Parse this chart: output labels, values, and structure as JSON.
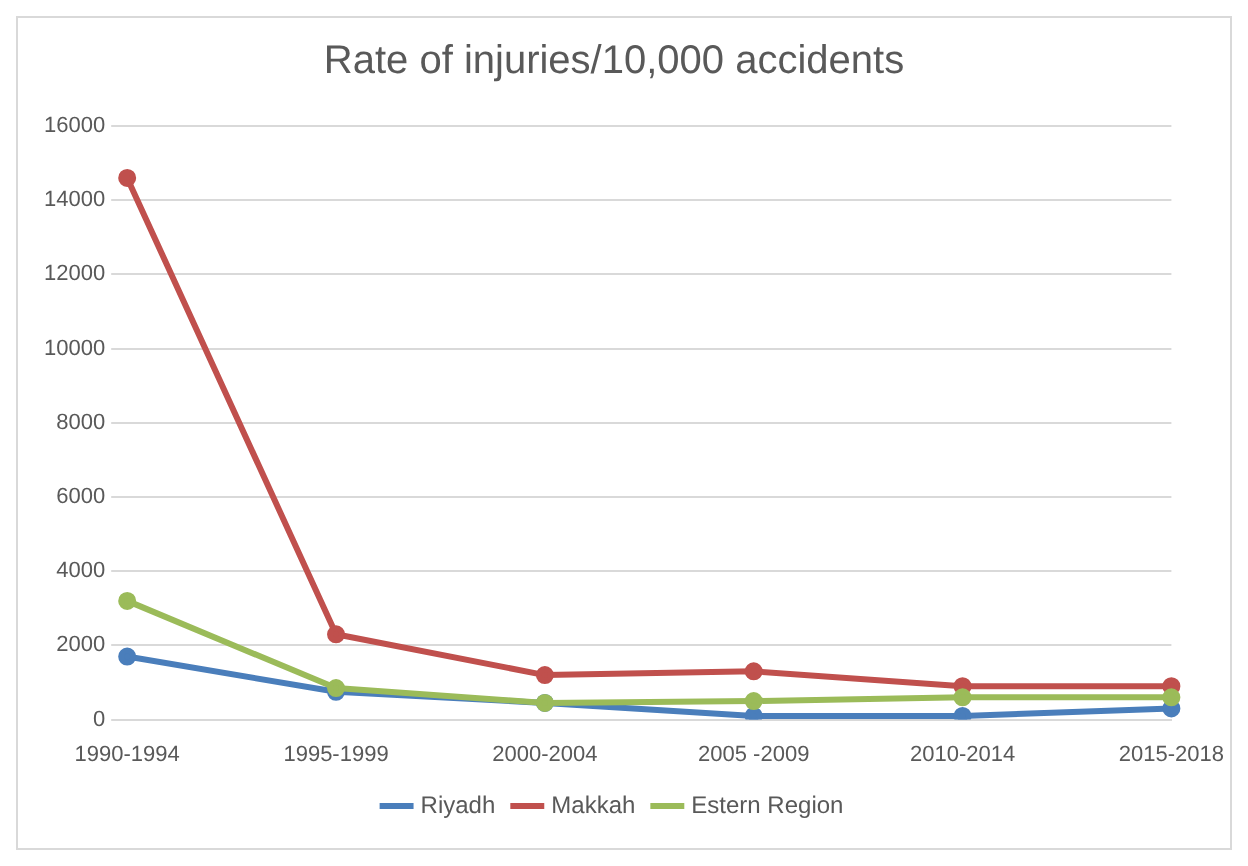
{
  "chart_data": {
    "type": "line",
    "title": "Rate of injuries/10,000 accidents",
    "categories": [
      "1990-1994",
      "1995-1999",
      "2000-2004",
      "2005 -2009",
      "2010-2014",
      "2015-2018"
    ],
    "series": [
      {
        "name": "Riyadh",
        "color": "#4a7ebb",
        "values": [
          1700,
          750,
          450,
          100,
          100,
          300
        ]
      },
      {
        "name": "Makkah",
        "color": "#c0504d",
        "values": [
          14600,
          2300,
          1200,
          1300,
          900,
          900
        ]
      },
      {
        "name": "Estern Region",
        "color": "#9bbb59",
        "values": [
          3200,
          850,
          450,
          500,
          600,
          600
        ]
      }
    ],
    "ylim": [
      0,
      16000
    ],
    "yticks": [
      0,
      2000,
      4000,
      6000,
      8000,
      10000,
      12000,
      14000,
      16000
    ],
    "grid": "y",
    "legend": "bottom",
    "marker": "circle",
    "line_style": "solid"
  }
}
